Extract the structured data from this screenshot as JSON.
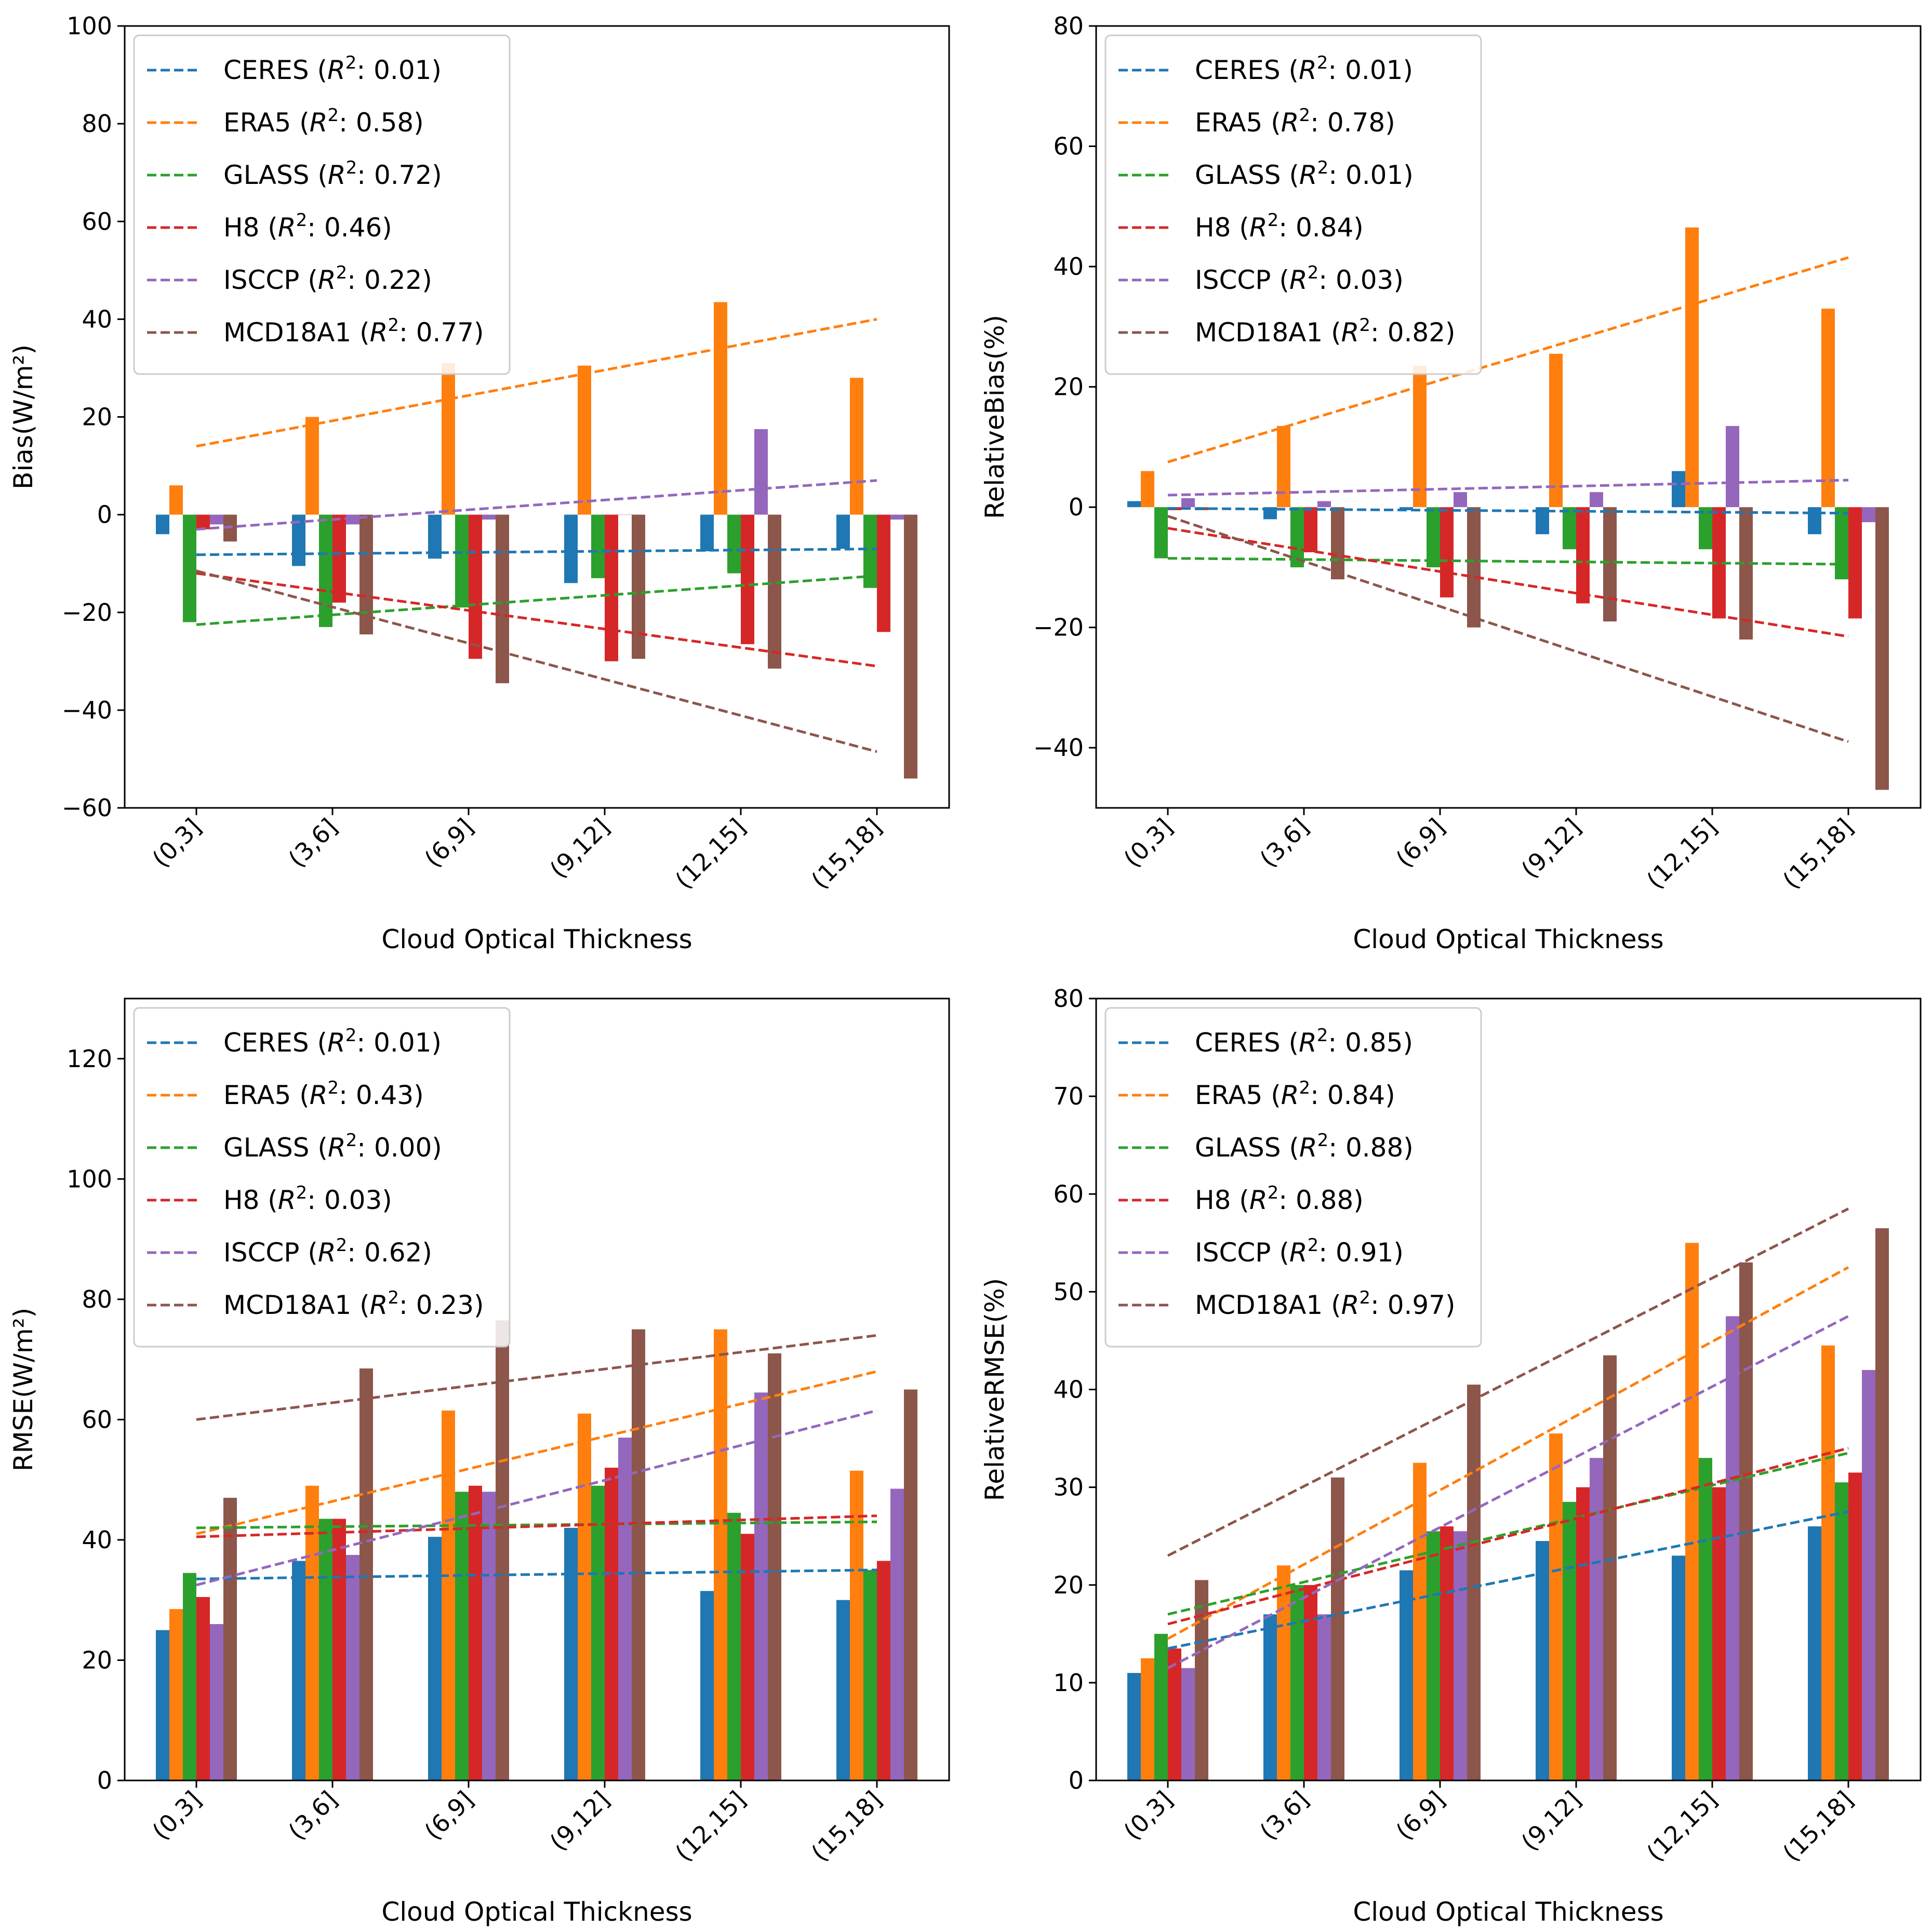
{
  "colors": {
    "CERES": "#1f77b4",
    "ERA5": "#ff7f0e",
    "GLASS": "#2ca02c",
    "H8": "#d62728",
    "ISCCP": "#9467bd",
    "MCD18A1": "#8c564b"
  },
  "chart_data": [
    {
      "id": "bias",
      "type": "bar",
      "title": "",
      "xlabel": "Cloud Optical Thickness",
      "ylabel": "Bias(W/m²)",
      "ylim": [
        -60,
        100
      ],
      "yticks": [
        -60,
        -40,
        -20,
        0,
        20,
        40,
        60,
        80,
        100
      ],
      "ytick_labels": [
        "−60",
        "−40",
        "−20",
        "0",
        "20",
        "40",
        "60",
        "80",
        "100"
      ],
      "categories": [
        "(0,3]",
        "(3,6]",
        "(6,9]",
        "(9,12]",
        "(12,15]",
        "(15,18]"
      ],
      "legend_position": "upper-left",
      "series": [
        {
          "name": "CERES",
          "r2": "0.01",
          "legend": [
            "CERES (",
            "R",
            "2",
            ": 0.01)"
          ],
          "values": [
            -4,
            -10.5,
            -9,
            -14,
            -7.5,
            -7
          ],
          "trend": [
            -8.2,
            -7
          ]
        },
        {
          "name": "ERA5",
          "r2": "0.58",
          "legend": [
            "ERA5 (",
            "R",
            "2",
            ": 0.58)"
          ],
          "values": [
            6,
            20,
            31,
            30.5,
            43.5,
            28
          ],
          "trend": [
            14,
            40
          ]
        },
        {
          "name": "GLASS",
          "r2": "0.72",
          "legend": [
            "GLASS (",
            "R",
            "2",
            ": 0.72)"
          ],
          "values": [
            -22,
            -23,
            -19,
            -13,
            -12,
            -15
          ],
          "trend": [
            -22.5,
            -12.5
          ]
        },
        {
          "name": "H8",
          "r2": "0.46",
          "legend": [
            "H8 (",
            "R",
            "2",
            ": 0.46)"
          ],
          "values": [
            -3,
            -18,
            -29.5,
            -30,
            -26.5,
            -24
          ],
          "trend": [
            -12,
            -31
          ]
        },
        {
          "name": "ISCCP",
          "r2": "0.22",
          "legend": [
            "ISCCP (",
            "R",
            "2",
            ": 0.22)"
          ],
          "values": [
            -2,
            -2,
            -1,
            0,
            17.5,
            -1
          ],
          "trend": [
            -3,
            7
          ]
        },
        {
          "name": "MCD18A1",
          "r2": "0.77",
          "legend": [
            "MCD18A1 (",
            "R",
            "2",
            ": 0.77)"
          ],
          "values": [
            -5.5,
            -24.5,
            -34.5,
            -29.5,
            -31.5,
            -54
          ],
          "trend": [
            -11.5,
            -48.5
          ]
        }
      ]
    },
    {
      "id": "relative-bias",
      "type": "bar",
      "title": "",
      "xlabel": "Cloud Optical Thickness",
      "ylabel": "RelativeBias(%)",
      "ylim": [
        -50,
        80
      ],
      "yticks": [
        -40,
        -20,
        0,
        20,
        40,
        60,
        80
      ],
      "ytick_labels": [
        "−40",
        "−20",
        "0",
        "20",
        "40",
        "60",
        "80"
      ],
      "categories": [
        "(0,3]",
        "(3,6]",
        "(6,9]",
        "(9,12]",
        "(12,15]",
        "(15,18]"
      ],
      "legend_position": "upper-left",
      "series": [
        {
          "name": "CERES",
          "r2": "0.01",
          "legend": [
            "CERES (",
            "R",
            "2",
            ": 0.01)"
          ],
          "values": [
            1,
            -2,
            -0.5,
            -4.5,
            6,
            -4.5
          ],
          "trend": [
            -0.2,
            -1
          ]
        },
        {
          "name": "ERA5",
          "r2": "0.78",
          "legend": [
            "ERA5 (",
            "R",
            "2",
            ": 0.78)"
          ],
          "values": [
            6,
            13.5,
            23.5,
            25.5,
            46.5,
            33
          ],
          "trend": [
            7.5,
            41.5
          ]
        },
        {
          "name": "GLASS",
          "r2": "0.01",
          "legend": [
            "GLASS (",
            "R",
            "2",
            ": 0.01)"
          ],
          "values": [
            -8.5,
            -10,
            -10,
            -7,
            -7,
            -12
          ],
          "trend": [
            -8.5,
            -9.5
          ]
        },
        {
          "name": "H8",
          "r2": "0.84",
          "legend": [
            "H8 (",
            "R",
            "2",
            ": 0.84)"
          ],
          "values": [
            -0.5,
            -7.5,
            -15,
            -16,
            -18.5,
            -18.5
          ],
          "trend": [
            -3.5,
            -21.5
          ]
        },
        {
          "name": "ISCCP",
          "r2": "0.03",
          "legend": [
            "ISCCP (",
            "R",
            "2",
            ": 0.03)"
          ],
          "values": [
            1.5,
            1,
            2.5,
            2.5,
            13.5,
            -2.5
          ],
          "trend": [
            2,
            4.5
          ]
        },
        {
          "name": "MCD18A1",
          "r2": "0.82",
          "legend": [
            "MCD18A1 (",
            "R",
            "2",
            ": 0.82)"
          ],
          "values": [
            -0.5,
            -12,
            -20,
            -19,
            -22,
            -47
          ],
          "trend": [
            -1.5,
            -39
          ]
        }
      ]
    },
    {
      "id": "rmse",
      "type": "bar",
      "title": "",
      "xlabel": "Cloud Optical Thickness",
      "ylabel": "RMSE(W/m²)",
      "ylim": [
        0,
        130
      ],
      "yticks": [
        0,
        20,
        40,
        60,
        80,
        100,
        120
      ],
      "ytick_labels": [
        "0",
        "20",
        "40",
        "60",
        "80",
        "100",
        "120"
      ],
      "categories": [
        "(0,3]",
        "(3,6]",
        "(6,9]",
        "(9,12]",
        "(12,15]",
        "(15,18]"
      ],
      "legend_position": "upper-left",
      "series": [
        {
          "name": "CERES",
          "r2": "0.01",
          "legend": [
            "CERES (",
            "R",
            "2",
            ": 0.01)"
          ],
          "values": [
            25,
            36.5,
            40.5,
            42,
            31.5,
            30
          ],
          "trend": [
            33.5,
            35
          ]
        },
        {
          "name": "ERA5",
          "r2": "0.43",
          "legend": [
            "ERA5 (",
            "R",
            "2",
            ": 0.43)"
          ],
          "values": [
            28.5,
            49,
            61.5,
            61,
            75,
            51.5
          ],
          "trend": [
            41,
            68
          ]
        },
        {
          "name": "GLASS",
          "r2": "0.00",
          "legend": [
            "GLASS (",
            "R",
            "2",
            ": 0.00)"
          ],
          "values": [
            34.5,
            43.5,
            48,
            49,
            44.5,
            35
          ],
          "trend": [
            42,
            43
          ]
        },
        {
          "name": "H8",
          "r2": "0.03",
          "legend": [
            "H8 (",
            "R",
            "2",
            ": 0.03)"
          ],
          "values": [
            30.5,
            43.5,
            49,
            52,
            41,
            36.5
          ],
          "trend": [
            40.5,
            44
          ]
        },
        {
          "name": "ISCCP",
          "r2": "0.62",
          "legend": [
            "ISCCP (",
            "R",
            "2",
            ": 0.62)"
          ],
          "values": [
            26,
            37.5,
            48,
            57,
            64.5,
            48.5
          ],
          "trend": [
            32.5,
            61.5
          ]
        },
        {
          "name": "MCD18A1",
          "r2": "0.23",
          "legend": [
            "MCD18A1 (",
            "R",
            "2",
            ": 0.23)"
          ],
          "values": [
            47,
            68.5,
            76.5,
            75,
            71,
            65
          ],
          "trend": [
            60,
            74
          ]
        }
      ]
    },
    {
      "id": "relative-rmse",
      "type": "bar",
      "title": "",
      "xlabel": "Cloud Optical Thickness",
      "ylabel": "RelativeRMSE(%)",
      "ylim": [
        0,
        80
      ],
      "yticks": [
        0,
        10,
        20,
        30,
        40,
        50,
        60,
        70,
        80
      ],
      "ytick_labels": [
        "0",
        "10",
        "20",
        "30",
        "40",
        "50",
        "60",
        "70",
        "80"
      ],
      "categories": [
        "(0,3]",
        "(3,6]",
        "(6,9]",
        "(9,12]",
        "(12,15]",
        "(15,18]"
      ],
      "legend_position": "upper-left",
      "series": [
        {
          "name": "CERES",
          "r2": "0.85",
          "legend": [
            "CERES (",
            "R",
            "2",
            ": 0.85)"
          ],
          "values": [
            11,
            17,
            21.5,
            24.5,
            23,
            26
          ],
          "trend": [
            13.5,
            27.5
          ]
        },
        {
          "name": "ERA5",
          "r2": "0.84",
          "legend": [
            "ERA5 (",
            "R",
            "2",
            ": 0.84)"
          ],
          "values": [
            12.5,
            22,
            32.5,
            35.5,
            55,
            44.5
          ],
          "trend": [
            14.5,
            52.5
          ]
        },
        {
          "name": "GLASS",
          "r2": "0.88",
          "legend": [
            "GLASS (",
            "R",
            "2",
            ": 0.88)"
          ],
          "values": [
            15,
            20,
            25.5,
            28.5,
            33,
            30.5
          ],
          "trend": [
            17,
            33.5
          ]
        },
        {
          "name": "H8",
          "r2": "0.88",
          "legend": [
            "H8 (",
            "R",
            "2",
            ": 0.88)"
          ],
          "values": [
            13.5,
            20,
            26,
            30,
            30,
            31.5
          ],
          "trend": [
            16,
            34
          ]
        },
        {
          "name": "ISCCP",
          "r2": "0.91",
          "legend": [
            "ISCCP (",
            "R",
            "2",
            ": 0.91)"
          ],
          "values": [
            11.5,
            17,
            25.5,
            33,
            47.5,
            42
          ],
          "trend": [
            11.5,
            47.5
          ]
        },
        {
          "name": "MCD18A1",
          "r2": "0.97",
          "legend": [
            "MCD18A1 (",
            "R",
            "2",
            ": 0.97)"
          ],
          "values": [
            20.5,
            31,
            40.5,
            43.5,
            53,
            56.5
          ],
          "trend": [
            23,
            58.5
          ]
        }
      ]
    }
  ]
}
